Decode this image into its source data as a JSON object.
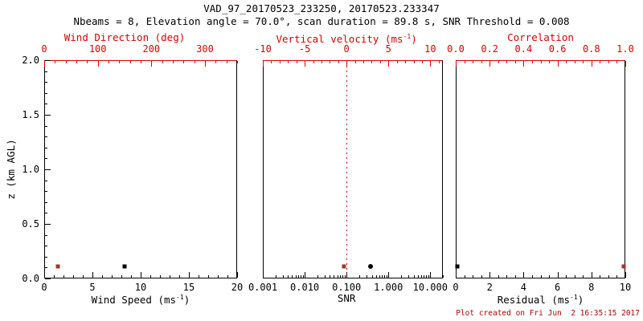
{
  "header": {
    "title": "VAD_97_20170523_233250, 20170523.233347",
    "subtitle": "Nbeams = 8, Elevation angle = 70.0°, scan duration = 89.8 s, SNR Threshold = 0.008"
  },
  "footer": {
    "timestamp": "Plot created on Fri Jun  2 16:35:15 2017"
  },
  "colors": {
    "background": "#ffffff",
    "black": "#000000",
    "axis_red": "#dd0000",
    "marker_red": "#a0362b",
    "timestamp_red": "#bb0000"
  },
  "chart_data": [
    {
      "type": "scatter",
      "panel": "wind",
      "ylabel": "z (km AGL)",
      "ylim": [
        0.0,
        2.0
      ],
      "yticks": [
        0.0,
        0.5,
        1.0,
        1.5,
        2.0
      ],
      "ytick_labels": [
        "0.0",
        "0.5",
        "1.0",
        "1.5",
        "2.0"
      ],
      "yminor": 0.1,
      "xlabel": {
        "pre": "Wind Speed (ms",
        "sup": "-1",
        "post": ")"
      },
      "xscale": "linear",
      "xlim": [
        0,
        20
      ],
      "xticks": [
        0,
        5,
        10,
        15,
        20
      ],
      "xtick_labels": [
        "0",
        "5",
        "10",
        "15",
        "20"
      ],
      "xminor": 1,
      "x2label": {
        "pre": "Wind Direction (deg)"
      },
      "x2lim": [
        0,
        360
      ],
      "x2ticks": [
        0,
        100,
        200,
        300
      ],
      "x2tick_labels": [
        "0",
        "100",
        "200",
        "300"
      ],
      "x2minor": 20,
      "series": [
        {
          "name": "wind-speed",
          "axis": "x1",
          "color": "black",
          "marker": "square",
          "points": [
            {
              "x": 8.3,
              "z": 0.11
            }
          ]
        },
        {
          "name": "wind-direction",
          "axis": "x2",
          "color": "red",
          "marker": "square",
          "points": [
            {
              "x": 25,
              "z": 0.11
            }
          ]
        }
      ]
    },
    {
      "type": "scatter",
      "panel": "snr",
      "ylim": [
        0.0,
        2.0
      ],
      "xlabel": {
        "pre": "SNR"
      },
      "xscale": "log",
      "xlim": [
        0.001,
        20
      ],
      "xticks": [
        0.001,
        0.01,
        0.1,
        1.0,
        10.0
      ],
      "xtick_labels": [
        "0.001",
        "0.010",
        "0.100",
        "1.000",
        "10.000"
      ],
      "x2label": {
        "pre": "Vertical velocity (ms",
        "sup": "-1",
        "post": ")"
      },
      "x2lim": [
        -10,
        11.5
      ],
      "x2ticks": [
        -10,
        -5,
        0,
        5,
        10
      ],
      "x2tick_labels": [
        "-10",
        "-5",
        "0",
        "5",
        "10"
      ],
      "x2minor": 1,
      "refline": {
        "name": "zero-vertical-velocity-line",
        "axis": "x2",
        "value": 0,
        "style": "dotted",
        "color": "red"
      },
      "series": [
        {
          "name": "snr",
          "axis": "x1",
          "color": "black",
          "marker": "circle",
          "points": [
            {
              "x": 0.38,
              "z": 0.11
            }
          ]
        },
        {
          "name": "vertical-velocity",
          "axis": "x2",
          "color": "red",
          "marker": "square",
          "points": [
            {
              "x": -0.3,
              "z": 0.11
            }
          ]
        }
      ]
    },
    {
      "type": "scatter",
      "panel": "residual",
      "ylim": [
        0.0,
        2.0
      ],
      "xlabel": {
        "pre": "Residual (ms",
        "sup": "-1",
        "post": ")"
      },
      "xscale": "linear",
      "xlim": [
        0,
        10
      ],
      "xticks": [
        0,
        2,
        4,
        6,
        8,
        10
      ],
      "xtick_labels": [
        "0",
        "2",
        "4",
        "6",
        "8",
        "10"
      ],
      "xminor": 0.5,
      "x2label": {
        "pre": "Correlation"
      },
      "x2lim": [
        0.0,
        1.0
      ],
      "x2ticks": [
        0.0,
        0.2,
        0.4,
        0.6,
        0.8,
        1.0
      ],
      "x2tick_labels": [
        "0.0",
        "0.2",
        "0.4",
        "0.6",
        "0.8",
        "1.0"
      ],
      "x2minor": 0.05,
      "series": [
        {
          "name": "residual",
          "axis": "x1",
          "color": "black",
          "marker": "square",
          "points": [
            {
              "x": 0.1,
              "z": 0.11
            }
          ]
        },
        {
          "name": "correlation",
          "axis": "x2",
          "color": "red",
          "marker": "square",
          "points": [
            {
              "x": 0.99,
              "z": 0.11
            }
          ]
        }
      ]
    }
  ]
}
